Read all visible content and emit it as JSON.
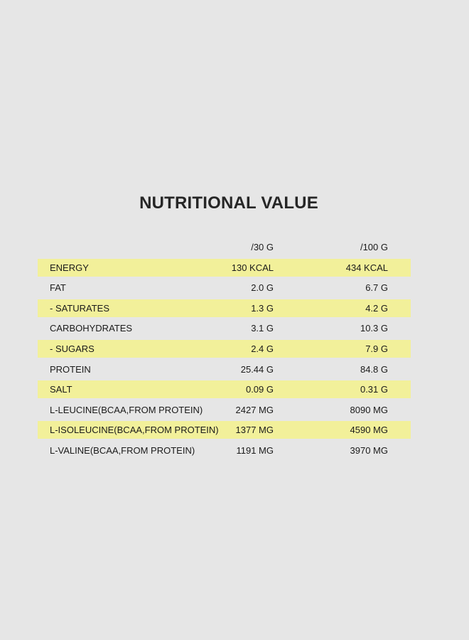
{
  "title": "NUTRITIONAL VALUE",
  "colors": {
    "background": "#e6e6e6",
    "highlight": "#f2f09a",
    "text": "#1a1a1a"
  },
  "table": {
    "columns": [
      "",
      "/30 G",
      "/100 G"
    ],
    "rows": [
      {
        "label": "ENERGY",
        "per30": "130 KCAL",
        "per100": "434 KCAL",
        "highlight": true
      },
      {
        "label": "FAT",
        "per30": "2.0 G",
        "per100": "6.7 G",
        "highlight": false
      },
      {
        "label": "- SATURATES",
        "per30": "1.3 G",
        "per100": "4.2 G",
        "highlight": true
      },
      {
        "label": "CARBOHYDRATES",
        "per30": "3.1 G",
        "per100": "10.3 G",
        "highlight": false
      },
      {
        "label": "- SUGARS",
        "per30": "2.4 G",
        "per100": "7.9 G",
        "highlight": true
      },
      {
        "label": "PROTEIN",
        "per30": "25.44 G",
        "per100": "84.8 G",
        "highlight": false
      },
      {
        "label": "SALT",
        "per30": "0.09 G",
        "per100": "0.31 G",
        "highlight": true
      },
      {
        "label": "L-LEUCINE(BCAA,FROM PROTEIN)",
        "per30": "2427 MG",
        "per100": "8090 MG",
        "highlight": false
      },
      {
        "label": "L-ISOLEUCINE(BCAA,FROM PROTEIN)",
        "per30": "1377 MG",
        "per100": "4590 MG",
        "highlight": true
      },
      {
        "label": "L-VALINE(BCAA,FROM PROTEIN)",
        "per30": "1191 MG",
        "per100": "3970 MG",
        "highlight": false
      }
    ]
  }
}
